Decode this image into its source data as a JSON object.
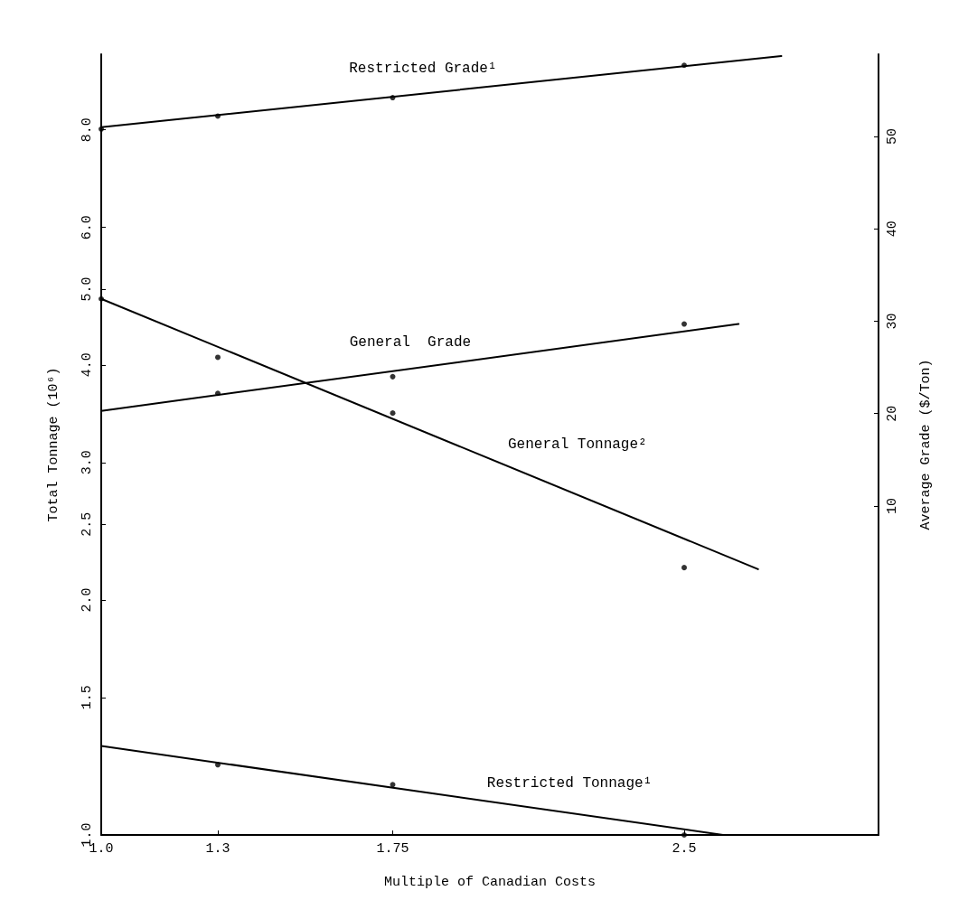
{
  "chart_data": {
    "type": "line",
    "xlabel": "Multiple of Canadian Costs",
    "ylabel": "Total Tonnage (10⁶)",
    "y2label": "Average Grade ($/Ton)",
    "xlim": [
      1.0,
      3.0
    ],
    "xticks": [
      {
        "value": 1.0,
        "label": "1.0"
      },
      1.3,
      1.75,
      2.5
    ],
    "ylim": [
      1,
      10
    ],
    "log": "y",
    "yticks": [
      {
        "value": 1,
        "label": "1.0"
      },
      1.5,
      {
        "value": 2,
        "label": "2.0"
      },
      2.5,
      {
        "value": 3,
        "label": "3.0"
      },
      {
        "value": 4,
        "label": "4.0"
      },
      {
        "value": 5,
        "label": "5.0"
      },
      {
        "value": 6,
        "label": "6.0"
      },
      {
        "value": 8,
        "label": "8.0"
      }
    ],
    "y2lim": [
      -25.6,
      58.9
    ],
    "y2ticks": [
      10,
      20,
      30,
      40,
      50
    ],
    "grid": false,
    "line_style": "solid",
    "series": [
      {
        "name": "Restricted Grade¹",
        "color": "#000000",
        "axis": "y2",
        "marker": "none",
        "x": [
          1.0,
          2.75
        ],
        "values": [
          51.0,
          58.7
        ]
      },
      {
        "type": "scatter",
        "color": "#000000",
        "axis": "y2",
        "marker": "circle",
        "x": [
          1.0,
          1.3,
          1.75,
          2.5
        ],
        "values": [
          50.8,
          52.2,
          54.2,
          57.7
        ]
      },
      {
        "name": "General  Grade",
        "color": "#000000",
        "axis": "y2",
        "marker": "none",
        "x": [
          1.0,
          2.64
        ],
        "values": [
          20.3,
          29.7
        ]
      },
      {
        "type": "scatter",
        "color": "#000000",
        "axis": "y2",
        "marker": "circle",
        "x": [
          1.3,
          1.75,
          2.5
        ],
        "values": [
          22.2,
          24.0,
          29.7
        ]
      },
      {
        "name": "General Tonnage²",
        "color": "#000000",
        "marker": "none",
        "x": [
          1.0,
          2.69
        ],
        "values": [
          4.86,
          2.19
        ]
      },
      {
        "type": "scatter",
        "color": "#000000",
        "marker": "circle",
        "x": [
          1.0,
          1.3,
          1.75,
          2.5
        ],
        "values": [
          4.86,
          4.09,
          3.47,
          2.2
        ]
      },
      {
        "name": "Restricted Tonnage¹",
        "color": "#000000",
        "marker": "none",
        "x": [
          1.0,
          2.6
        ],
        "values": [
          1.3,
          1.0
        ]
      },
      {
        "type": "scatter",
        "color": "#000000",
        "marker": "circle",
        "x": [
          1.3,
          1.75,
          2.5
        ],
        "values": [
          1.23,
          1.16,
          1.0
        ]
      }
    ]
  }
}
